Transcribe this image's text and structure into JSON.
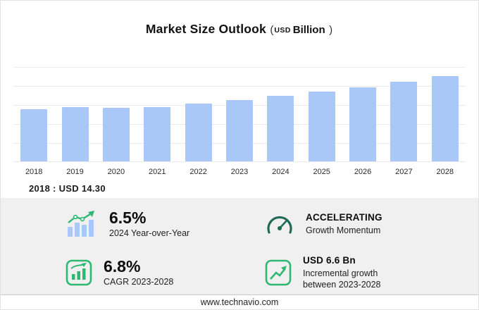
{
  "title": {
    "main": "Market Size Outlook",
    "paren_open": "(",
    "currency": "USD",
    "unit": "Billion",
    "paren_close": ")"
  },
  "annotation": {
    "text": "2018 : USD 14.30"
  },
  "chart_data": {
    "type": "bar",
    "title": "Market Size Outlook (USD Billion)",
    "categories": [
      "2018",
      "2019",
      "2020",
      "2021",
      "2022",
      "2023",
      "2024",
      "2025",
      "2026",
      "2027",
      "2028"
    ],
    "values": [
      14.3,
      14.95,
      14.7,
      14.9,
      15.9,
      16.9,
      18.0,
      19.2,
      20.4,
      21.9,
      23.5
    ],
    "xlabel": "",
    "ylabel": "",
    "ylim": [
      0,
      26
    ],
    "grid": true,
    "legend": false,
    "bar_color": "#a9c8f7",
    "annotation": "2018 : USD 14.30"
  },
  "stats": {
    "yoy": {
      "value": "6.5%",
      "label": "2024 Year-over-Year"
    },
    "momentum": {
      "value": "ACCELERATING",
      "label": "Growth Momentum"
    },
    "cagr": {
      "value": "6.8%",
      "label": "CAGR 2023-2028"
    },
    "incremental": {
      "value": "USD 6.6 Bn",
      "label_line1": "Incremental growth",
      "label_line2": "between 2023-2028"
    }
  },
  "footer": {
    "url": "www.technavio.com"
  },
  "colors": {
    "bar": "#a9c8f7",
    "green": "#2eb872",
    "gauge": "#1e6a57",
    "panel_bg": "#f0f0f1",
    "grid": "#eaeaea"
  }
}
